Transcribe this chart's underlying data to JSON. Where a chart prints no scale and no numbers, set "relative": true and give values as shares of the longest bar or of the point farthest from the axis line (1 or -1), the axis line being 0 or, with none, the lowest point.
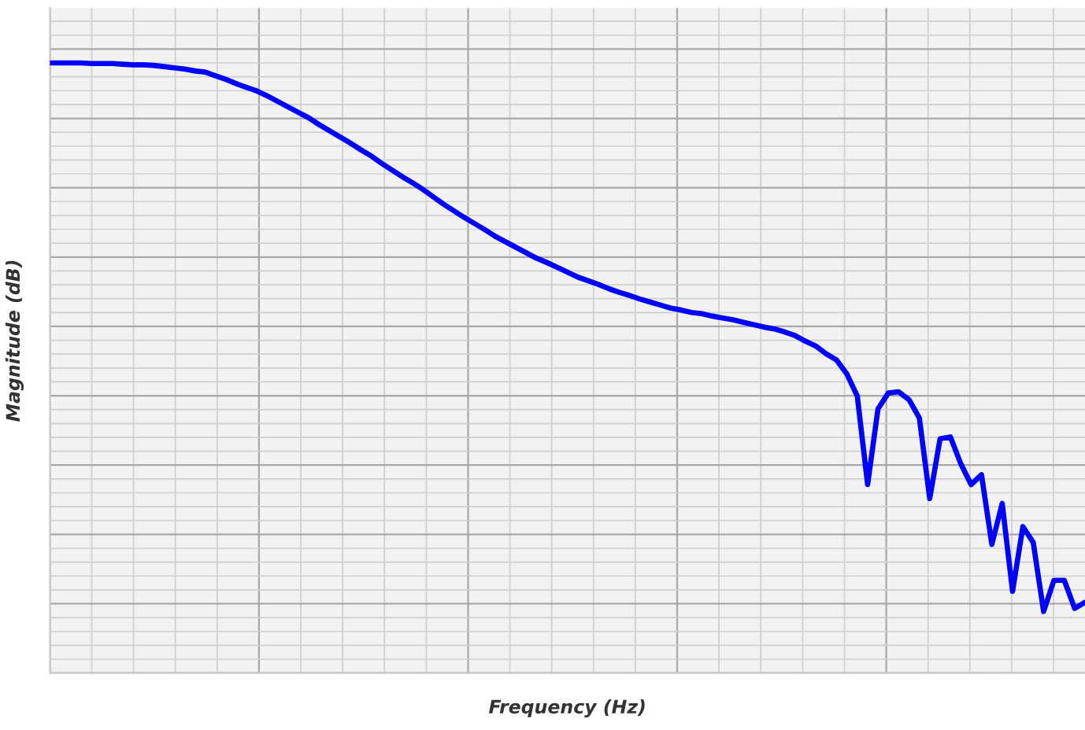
{
  "chart_data": {
    "type": "line",
    "relative": true,
    "xlabel": "Frequency (Hz)",
    "ylabel": "Magnitude (dB)",
    "grid": true,
    "tick_labels": false,
    "categories": [
      null,
      null,
      null,
      null,
      null,
      null,
      null,
      null,
      null,
      null,
      null,
      null,
      null,
      null,
      null,
      null,
      null,
      null,
      null,
      null,
      null,
      null,
      null,
      null,
      null,
      null,
      null,
      null,
      null,
      null,
      null,
      null,
      null,
      null,
      null,
      null,
      null,
      null,
      null,
      null,
      null,
      null,
      null,
      null,
      null,
      null,
      null,
      null,
      null,
      null,
      null,
      null,
      null,
      null,
      null,
      null,
      null,
      null,
      null,
      null,
      null,
      null,
      null,
      null,
      null,
      null,
      null,
      null,
      null,
      null,
      null,
      null,
      null,
      null,
      null,
      null,
      null,
      null,
      null,
      null,
      null,
      null,
      null,
      null,
      null,
      null,
      null,
      null,
      null,
      null,
      null,
      null,
      null,
      null,
      null,
      null,
      null,
      null,
      null,
      null,
      null
    ],
    "series": [
      {
        "color": "#0000ff",
        "values": [
          1.0,
          1.0,
          1.0,
          1.0,
          0.999,
          0.999,
          0.999,
          0.998,
          0.997,
          0.997,
          0.996,
          0.994,
          0.992,
          0.99,
          0.987,
          0.985,
          0.979,
          0.973,
          0.966,
          0.96,
          0.954,
          0.946,
          0.937,
          0.928,
          0.919,
          0.91,
          0.899,
          0.889,
          0.879,
          0.869,
          0.858,
          0.848,
          0.836,
          0.825,
          0.814,
          0.804,
          0.793,
          0.781,
          0.769,
          0.758,
          0.747,
          0.737,
          0.727,
          0.716,
          0.707,
          0.698,
          0.689,
          0.68,
          0.673,
          0.665,
          0.657,
          0.649,
          0.643,
          0.637,
          0.63,
          0.624,
          0.619,
          0.613,
          0.608,
          0.603,
          0.598,
          0.595,
          0.591,
          0.589,
          0.585,
          0.582,
          0.579,
          0.575,
          0.571,
          0.567,
          0.564,
          0.559,
          0.553,
          0.544,
          0.536,
          0.523,
          0.513,
          0.49,
          0.454,
          0.309,
          0.433,
          0.459,
          0.461,
          0.448,
          0.418,
          0.286,
          0.384,
          0.387,
          0.343,
          0.309,
          0.325,
          0.211,
          0.278,
          0.134,
          0.24,
          0.214,
          0.101,
          0.152,
          0.152,
          0.106,
          0.116
        ]
      }
    ]
  }
}
